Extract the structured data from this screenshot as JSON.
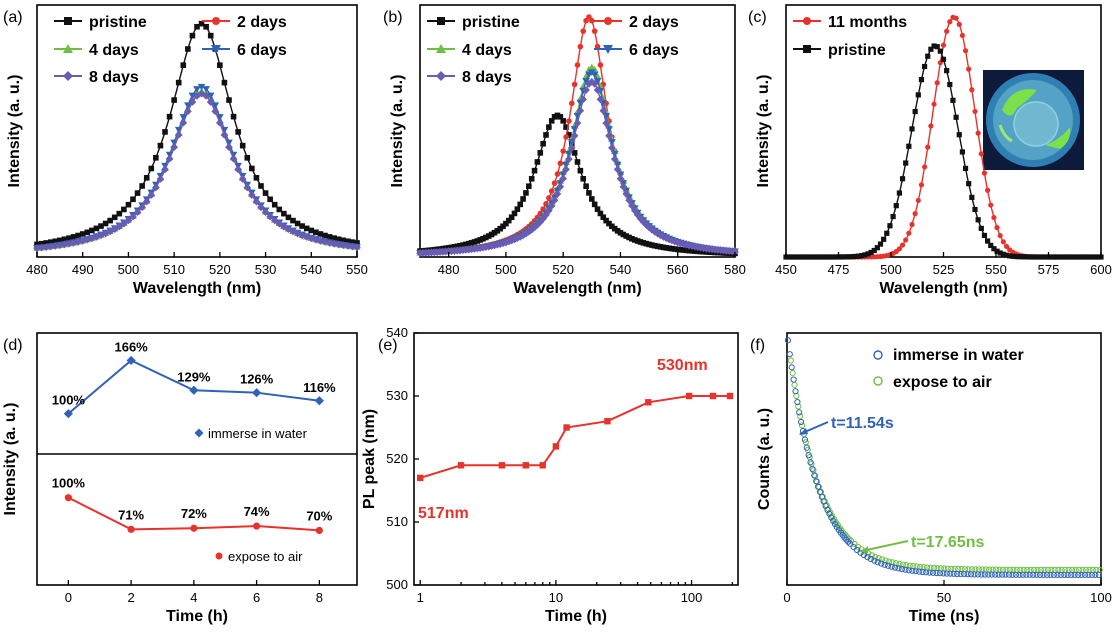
{
  "colors": {
    "black": "#111111",
    "red": "#e8322c",
    "green": "#6fbe44",
    "blue": "#2f63b8",
    "purple": "#6a5bb5"
  },
  "panel_labels": [
    "(a)",
    "(b)",
    "(c)",
    "(d)",
    "(e)",
    "(f)"
  ],
  "chart_data": [
    {
      "panel": "(a)",
      "type": "line",
      "xlabel": "Wavelength (nm)",
      "ylabel": "Intensity (a. u.)",
      "xlim": [
        480,
        550
      ],
      "ylim": [
        0,
        1.08
      ],
      "xticks": [
        480,
        490,
        500,
        510,
        520,
        530,
        540,
        550
      ],
      "series": [
        {
          "name": "pristine",
          "color": "black",
          "marker": "square",
          "peak": 516,
          "amp": 1.0,
          "width": 8.6,
          "shape": "lorentz"
        },
        {
          "name": "2 days",
          "color": "red",
          "marker": "circle",
          "peak": 516,
          "amp": 0.7,
          "width": 8.6,
          "shape": "lorentz"
        },
        {
          "name": "4 days",
          "color": "green",
          "marker": "triangle",
          "peak": 516,
          "amp": 0.71,
          "width": 8.6,
          "shape": "lorentz"
        },
        {
          "name": "6 days",
          "color": "blue",
          "marker": "triangle-down",
          "peak": 516,
          "amp": 0.73,
          "width": 8.6,
          "shape": "lorentz"
        },
        {
          "name": "8 days",
          "color": "purple",
          "marker": "diamond",
          "peak": 516,
          "amp": 0.7,
          "width": 8.6,
          "shape": "lorentz"
        }
      ]
    },
    {
      "panel": "(b)",
      "type": "line",
      "xlabel": "Wavelength (nm)",
      "ylabel": "Intensity (a. u.)",
      "xlim": [
        470,
        580
      ],
      "ylim": [
        0,
        1.05
      ],
      "xticks": [
        480,
        500,
        520,
        540,
        560,
        580
      ],
      "series": [
        {
          "name": "pristine",
          "color": "black",
          "marker": "square",
          "peak": 518,
          "amp": 0.59,
          "width": 10,
          "shape": "lorentz"
        },
        {
          "name": "2 days",
          "color": "red",
          "marker": "circle",
          "peak": 529,
          "amp": 1.0,
          "width": 8,
          "shape": "lorentz"
        },
        {
          "name": "4 days",
          "color": "green",
          "marker": "triangle",
          "peak": 530,
          "amp": 0.79,
          "width": 9,
          "shape": "lorentz"
        },
        {
          "name": "6 days",
          "color": "blue",
          "marker": "triangle-down",
          "peak": 530,
          "amp": 0.77,
          "width": 9,
          "shape": "lorentz"
        },
        {
          "name": "8 days",
          "color": "purple",
          "marker": "diamond",
          "peak": 530,
          "amp": 0.73,
          "width": 9,
          "shape": "lorentz"
        }
      ]
    },
    {
      "panel": "(c)",
      "type": "line",
      "xlabel": "Wavelength (nm)",
      "ylabel": "Intensity (a. u.)",
      "xlim": [
        450,
        600
      ],
      "ylim": [
        0,
        1.05
      ],
      "xticks": [
        450,
        475,
        500,
        525,
        550,
        575,
        600
      ],
      "series": [
        {
          "name": "11 months",
          "color": "red",
          "marker": "circle",
          "peak": 530,
          "amp": 1.0,
          "width": 10,
          "shape": "gauss"
        },
        {
          "name": "pristine",
          "color": "black",
          "marker": "square",
          "peak": 521,
          "amp": 0.88,
          "width": 11,
          "shape": "gauss"
        }
      ],
      "inset": "photo"
    },
    {
      "panel": "(d)",
      "type": "line",
      "xlabel": "Time (h)",
      "ylabel": "Intensity (a. u.)",
      "x": [
        0,
        2,
        4,
        6,
        8
      ],
      "upper": {
        "name": "immerse in water",
        "color": "blue",
        "values": [
          100,
          166,
          129,
          126,
          116
        ],
        "labels": [
          "100%",
          "166%",
          "129%",
          "126%",
          "116%"
        ],
        "ylim": [
          50,
          200
        ]
      },
      "lower": {
        "name": "expose to air",
        "color": "red",
        "values": [
          100,
          71,
          72,
          74,
          70
        ],
        "labels": [
          "100%",
          "71%",
          "72%",
          "74%",
          "70%"
        ],
        "ylim": [
          20,
          140
        ]
      }
    },
    {
      "panel": "(e)",
      "type": "line",
      "xlabel": "Time (h)",
      "ylabel": "PL peak (nm)",
      "xscale": "log",
      "xlim": [
        0.9,
        220
      ],
      "ylim": [
        500,
        540
      ],
      "xticks": [
        1,
        10,
        100
      ],
      "yticks": [
        500,
        510,
        520,
        530,
        540
      ],
      "x": [
        1,
        2,
        4,
        6,
        8,
        10,
        12,
        24,
        48,
        96,
        144,
        192
      ],
      "y": [
        517,
        519,
        519,
        519,
        519,
        522,
        525,
        526,
        529,
        530,
        530,
        530
      ],
      "color": "red",
      "annotations": [
        {
          "text": "517nm"
        },
        {
          "text": "530nm"
        }
      ]
    },
    {
      "panel": "(f)",
      "type": "scatter",
      "xlabel": "Time (ns)",
      "ylabel": "Counts (a. u.)",
      "xlim": [
        0,
        100
      ],
      "ylim": [
        0,
        1.0
      ],
      "xticks": [
        0,
        50,
        100
      ],
      "series": [
        {
          "name": "immerse in water",
          "color": "blue",
          "tau": 11.54,
          "floor": 0.04
        },
        {
          "name": "expose to air",
          "color": "green",
          "tau": 17.65,
          "floor": 0.06
        }
      ],
      "annotations": [
        {
          "text": "t=11.54s",
          "color": "blue"
        },
        {
          "text": "t=17.65ns",
          "color": "green"
        }
      ]
    }
  ]
}
